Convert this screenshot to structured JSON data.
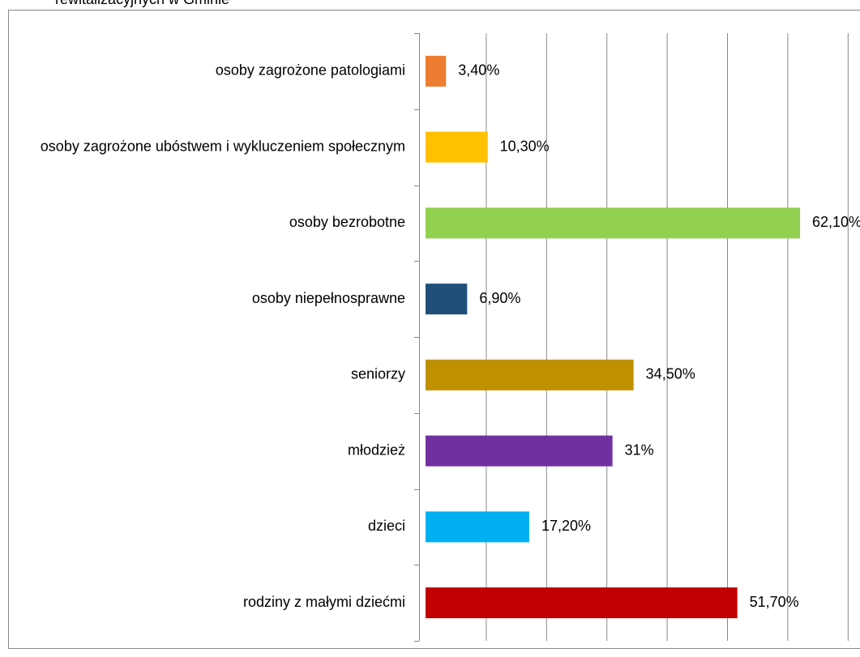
{
  "chart_data": {
    "type": "bar",
    "orientation": "horizontal",
    "title": "rewitalizacyjnych w Gminie",
    "categories": [
      "osoby zagrożone patologiami",
      "osoby zagrożone ubóstwem i wykluczeniem społecznym",
      "osoby bezrobotne",
      "osoby niepełnosprawne",
      "seniorzy",
      "młodzież",
      "dzieci",
      "rodziny z małymi dziećmi"
    ],
    "values": [
      3.4,
      10.3,
      62.1,
      6.9,
      34.5,
      31,
      17.2,
      51.7
    ],
    "value_labels": [
      "3,40%",
      "10,30%",
      "62,10%",
      "6,90%",
      "34,50%",
      "31%",
      "17,20%",
      "51,70%"
    ],
    "colors": [
      "#ed7d31",
      "#ffc000",
      "#92d050",
      "#1f4e79",
      "#bf9000",
      "#7030a0",
      "#00b0f0",
      "#c00000"
    ],
    "xlim": [
      0,
      70
    ],
    "xticks": [
      0,
      10,
      20,
      30,
      40,
      50,
      60,
      70
    ],
    "grid": true
  }
}
